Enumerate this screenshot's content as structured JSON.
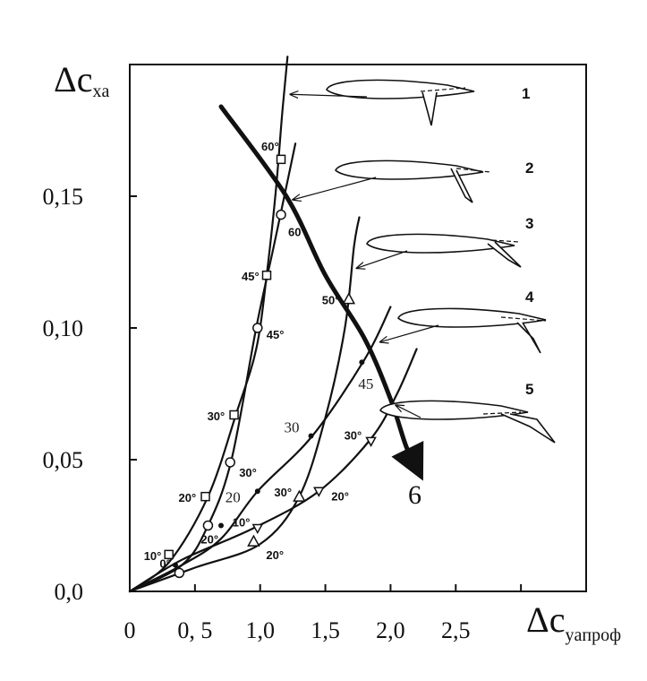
{
  "chart_data": {
    "type": "line",
    "ylabel": {
      "main": "Δc",
      "sub": "xa"
    },
    "xlabel": {
      "main": "Δc",
      "sub": "yaпроф"
    },
    "xlim": [
      0,
      3.5
    ],
    "ylim": [
      0,
      0.2
    ],
    "x_ticks": [
      {
        "value": 0,
        "label": "0"
      },
      {
        "value": 0.5,
        "label": "0, 5"
      },
      {
        "value": 1.0,
        "label": "1,0"
      },
      {
        "value": 1.5,
        "label": "1,5"
      },
      {
        "value": 2.0,
        "label": "2,0"
      },
      {
        "value": 2.5,
        "label": "2,5"
      },
      {
        "value": 3.0,
        "label": ""
      }
    ],
    "y_ticks": [
      {
        "value": 0.0,
        "label": "0,0"
      },
      {
        "value": 0.05,
        "label": "0,05"
      },
      {
        "value": 0.1,
        "label": "0,10"
      },
      {
        "value": 0.15,
        "label": "0,15"
      }
    ],
    "series": [
      {
        "name": "1",
        "curve": [
          [
            0,
            0
          ],
          [
            0.3,
            0.011
          ],
          [
            0.6,
            0.036
          ],
          [
            0.82,
            0.068
          ],
          [
            0.97,
            0.092
          ],
          [
            1.05,
            0.12
          ],
          [
            1.12,
            0.152
          ],
          [
            1.17,
            0.182
          ],
          [
            1.21,
            0.203
          ]
        ],
        "markers": [
          {
            "x": 0.3,
            "y": 0.014,
            "shape": "square",
            "label": "10°"
          },
          {
            "x": 0.58,
            "y": 0.036,
            "shape": "square",
            "label": "20°"
          },
          {
            "x": 0.8,
            "y": 0.067,
            "shape": "square",
            "label": "30°"
          },
          {
            "x": 1.05,
            "y": 0.12,
            "shape": "square",
            "label": "45°"
          },
          {
            "x": 1.16,
            "y": 0.164,
            "shape": "square",
            "label": "60°"
          }
        ],
        "end_pointer": [
          1.21,
          0.188
        ]
      },
      {
        "name": "2",
        "curve": [
          [
            0,
            0
          ],
          [
            0.4,
            0.01
          ],
          [
            0.6,
            0.025
          ],
          [
            0.78,
            0.05
          ],
          [
            0.97,
            0.1
          ],
          [
            1.1,
            0.13
          ],
          [
            1.16,
            0.144
          ],
          [
            1.27,
            0.17
          ]
        ],
        "markers": [
          {
            "x": 0.38,
            "y": 0.007,
            "shape": "circle",
            "label": "0°"
          },
          {
            "x": 0.6,
            "y": 0.025,
            "shape": "circle",
            "label": "20°"
          },
          {
            "x": 0.77,
            "y": 0.049,
            "shape": "circle",
            "label": "30°"
          },
          {
            "x": 0.98,
            "y": 0.1,
            "shape": "circle",
            "label": "45°"
          },
          {
            "x": 1.16,
            "y": 0.143,
            "shape": "circle",
            "label": "60°"
          }
        ],
        "end_pointer": [
          1.23,
          0.148
        ]
      },
      {
        "name": "3",
        "curve": [
          [
            0,
            0
          ],
          [
            0.5,
            0.009
          ],
          [
            1.0,
            0.018
          ],
          [
            1.3,
            0.036
          ],
          [
            1.5,
            0.066
          ],
          [
            1.65,
            0.1
          ],
          [
            1.72,
            0.131
          ],
          [
            1.76,
            0.142
          ]
        ],
        "markers": [
          {
            "x": 0.95,
            "y": 0.019,
            "shape": "triangle-up",
            "label": "20°"
          },
          {
            "x": 1.3,
            "y": 0.036,
            "shape": "triangle-up",
            "label": "30°"
          },
          {
            "x": 1.68,
            "y": 0.111,
            "shape": "triangle-up",
            "label": "50°"
          }
        ],
        "end_pointer": [
          1.72,
          0.122
        ]
      },
      {
        "name": "4",
        "curve": [
          [
            0,
            0
          ],
          [
            0.4,
            0.01
          ],
          [
            0.7,
            0.02
          ],
          [
            0.98,
            0.038
          ],
          [
            1.4,
            0.059
          ],
          [
            1.8,
            0.088
          ],
          [
            2.0,
            0.108
          ]
        ],
        "markers": [
          {
            "x": 0.35,
            "y": 0.01,
            "shape": "dot",
            "label": ""
          },
          {
            "x": 0.7,
            "y": 0.025,
            "shape": "dot",
            "label": ""
          },
          {
            "x": 0.98,
            "y": 0.038,
            "shape": "dot",
            "label": "20"
          },
          {
            "x": 1.39,
            "y": 0.059,
            "shape": "dot",
            "label": "30"
          },
          {
            "x": 1.78,
            "y": 0.087,
            "shape": "dot",
            "label": "45"
          }
        ],
        "end_pointer": [
          1.9,
          0.094
        ]
      },
      {
        "name": "5",
        "curve": [
          [
            0,
            0
          ],
          [
            0.4,
            0.012
          ],
          [
            0.95,
            0.024
          ],
          [
            1.45,
            0.038
          ],
          [
            1.85,
            0.058
          ],
          [
            2.05,
            0.075
          ],
          [
            2.2,
            0.092
          ]
        ],
        "markers": [
          {
            "x": 0.98,
            "y": 0.024,
            "shape": "triangle-down",
            "label": "10°"
          },
          {
            "x": 1.45,
            "y": 0.038,
            "shape": "triangle-down",
            "label": "20°"
          },
          {
            "x": 1.85,
            "y": 0.057,
            "shape": "triangle-down",
            "label": "30°"
          }
        ],
        "end_pointer": [
          2.02,
          0.07
        ]
      },
      {
        "name": "6",
        "curve": [
          [
            0.7,
            0.184
          ],
          [
            1.2,
            0.15
          ],
          [
            1.5,
            0.12
          ],
          [
            1.8,
            0.096
          ],
          [
            2.0,
            0.073
          ],
          [
            2.12,
            0.055
          ],
          [
            2.22,
            0.045
          ]
        ],
        "thick": true
      }
    ],
    "annotations": [
      "1",
      "2",
      "3",
      "4",
      "5",
      "6"
    ]
  }
}
